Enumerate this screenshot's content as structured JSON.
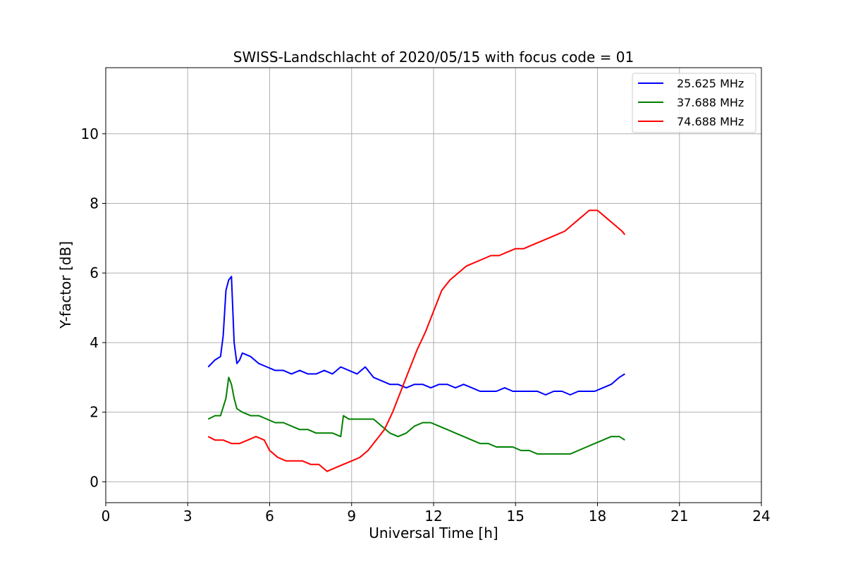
{
  "chart_data": {
    "type": "line",
    "title": "SWISS-Landschlacht of 2020/05/15 with focus code = 01",
    "xlabel": "Universal Time [h]",
    "ylabel": "Y-factor [dB]",
    "xlim": [
      0,
      24
    ],
    "ylim": [
      -0.6,
      11.9
    ],
    "xticks": [
      0,
      3,
      6,
      9,
      12,
      15,
      18,
      21,
      24
    ],
    "yticks": [
      0,
      2,
      4,
      6,
      8,
      10
    ],
    "grid": true,
    "legend_position": "top-right",
    "series": [
      {
        "name": "25.625 MHz",
        "color": "#0000ff",
        "x": [
          3.75,
          4.0,
          4.2,
          4.3,
          4.4,
          4.5,
          4.6,
          4.7,
          4.8,
          4.9,
          5.0,
          5.3,
          5.6,
          5.9,
          6.2,
          6.5,
          6.8,
          7.1,
          7.4,
          7.7,
          8.0,
          8.3,
          8.6,
          8.9,
          9.2,
          9.5,
          9.8,
          10.1,
          10.4,
          10.7,
          11.0,
          11.3,
          11.6,
          11.9,
          12.2,
          12.5,
          12.8,
          13.1,
          13.4,
          13.7,
          14.0,
          14.3,
          14.6,
          14.9,
          15.2,
          15.5,
          15.8,
          16.1,
          16.4,
          16.7,
          17.0,
          17.3,
          17.6,
          17.9,
          18.2,
          18.5,
          18.8,
          19.0
        ],
        "y": [
          3.3,
          3.5,
          3.6,
          4.2,
          5.5,
          5.8,
          5.9,
          4.0,
          3.4,
          3.5,
          3.7,
          3.6,
          3.4,
          3.3,
          3.2,
          3.2,
          3.1,
          3.2,
          3.1,
          3.1,
          3.2,
          3.1,
          3.3,
          3.2,
          3.1,
          3.3,
          3.0,
          2.9,
          2.8,
          2.8,
          2.7,
          2.8,
          2.8,
          2.7,
          2.8,
          2.8,
          2.7,
          2.8,
          2.7,
          2.6,
          2.6,
          2.6,
          2.7,
          2.6,
          2.6,
          2.6,
          2.6,
          2.5,
          2.6,
          2.6,
          2.5,
          2.6,
          2.6,
          2.6,
          2.7,
          2.8,
          3.0,
          3.1
        ]
      },
      {
        "name": "37.688 MHz",
        "color": "#008000",
        "x": [
          3.75,
          4.0,
          4.2,
          4.4,
          4.5,
          4.6,
          4.7,
          4.8,
          5.0,
          5.3,
          5.6,
          5.9,
          6.2,
          6.5,
          6.8,
          7.1,
          7.4,
          7.7,
          8.0,
          8.3,
          8.6,
          8.7,
          8.9,
          9.2,
          9.5,
          9.8,
          10.1,
          10.4,
          10.7,
          11.0,
          11.3,
          11.6,
          11.9,
          12.2,
          12.5,
          12.8,
          13.1,
          13.4,
          13.7,
          14.0,
          14.3,
          14.6,
          14.9,
          15.2,
          15.5,
          15.8,
          16.1,
          16.4,
          16.7,
          17.0,
          17.3,
          17.6,
          17.9,
          18.2,
          18.5,
          18.8,
          19.0
        ],
        "y": [
          1.8,
          1.9,
          1.9,
          2.4,
          3.0,
          2.8,
          2.4,
          2.1,
          2.0,
          1.9,
          1.9,
          1.8,
          1.7,
          1.7,
          1.6,
          1.5,
          1.5,
          1.4,
          1.4,
          1.4,
          1.3,
          1.9,
          1.8,
          1.8,
          1.8,
          1.8,
          1.6,
          1.4,
          1.3,
          1.4,
          1.6,
          1.7,
          1.7,
          1.6,
          1.5,
          1.4,
          1.3,
          1.2,
          1.1,
          1.1,
          1.0,
          1.0,
          1.0,
          0.9,
          0.9,
          0.8,
          0.8,
          0.8,
          0.8,
          0.8,
          0.9,
          1.0,
          1.1,
          1.2,
          1.3,
          1.3,
          1.2
        ]
      },
      {
        "name": "74.688 MHz",
        "color": "#ff0000",
        "x": [
          3.75,
          4.0,
          4.3,
          4.6,
          4.9,
          5.2,
          5.5,
          5.8,
          6.0,
          6.3,
          6.6,
          6.9,
          7.2,
          7.5,
          7.8,
          8.1,
          8.4,
          8.7,
          9.0,
          9.3,
          9.6,
          9.9,
          10.2,
          10.5,
          10.8,
          11.1,
          11.4,
          11.7,
          12.0,
          12.3,
          12.6,
          12.9,
          13.2,
          13.5,
          13.8,
          14.1,
          14.4,
          14.7,
          15.0,
          15.3,
          15.6,
          15.9,
          16.2,
          16.5,
          16.8,
          17.1,
          17.4,
          17.7,
          18.0,
          18.3,
          18.6,
          18.9,
          19.0
        ],
        "y": [
          1.3,
          1.2,
          1.2,
          1.1,
          1.1,
          1.2,
          1.3,
          1.2,
          0.9,
          0.7,
          0.6,
          0.6,
          0.6,
          0.5,
          0.5,
          0.3,
          0.4,
          0.5,
          0.6,
          0.7,
          0.9,
          1.2,
          1.5,
          2.0,
          2.6,
          3.2,
          3.8,
          4.3,
          4.9,
          5.5,
          5.8,
          6.0,
          6.2,
          6.3,
          6.4,
          6.5,
          6.5,
          6.6,
          6.7,
          6.7,
          6.8,
          6.9,
          7.0,
          7.1,
          7.2,
          7.4,
          7.6,
          7.8,
          7.8,
          7.6,
          7.4,
          7.2,
          7.1
        ]
      }
    ]
  }
}
